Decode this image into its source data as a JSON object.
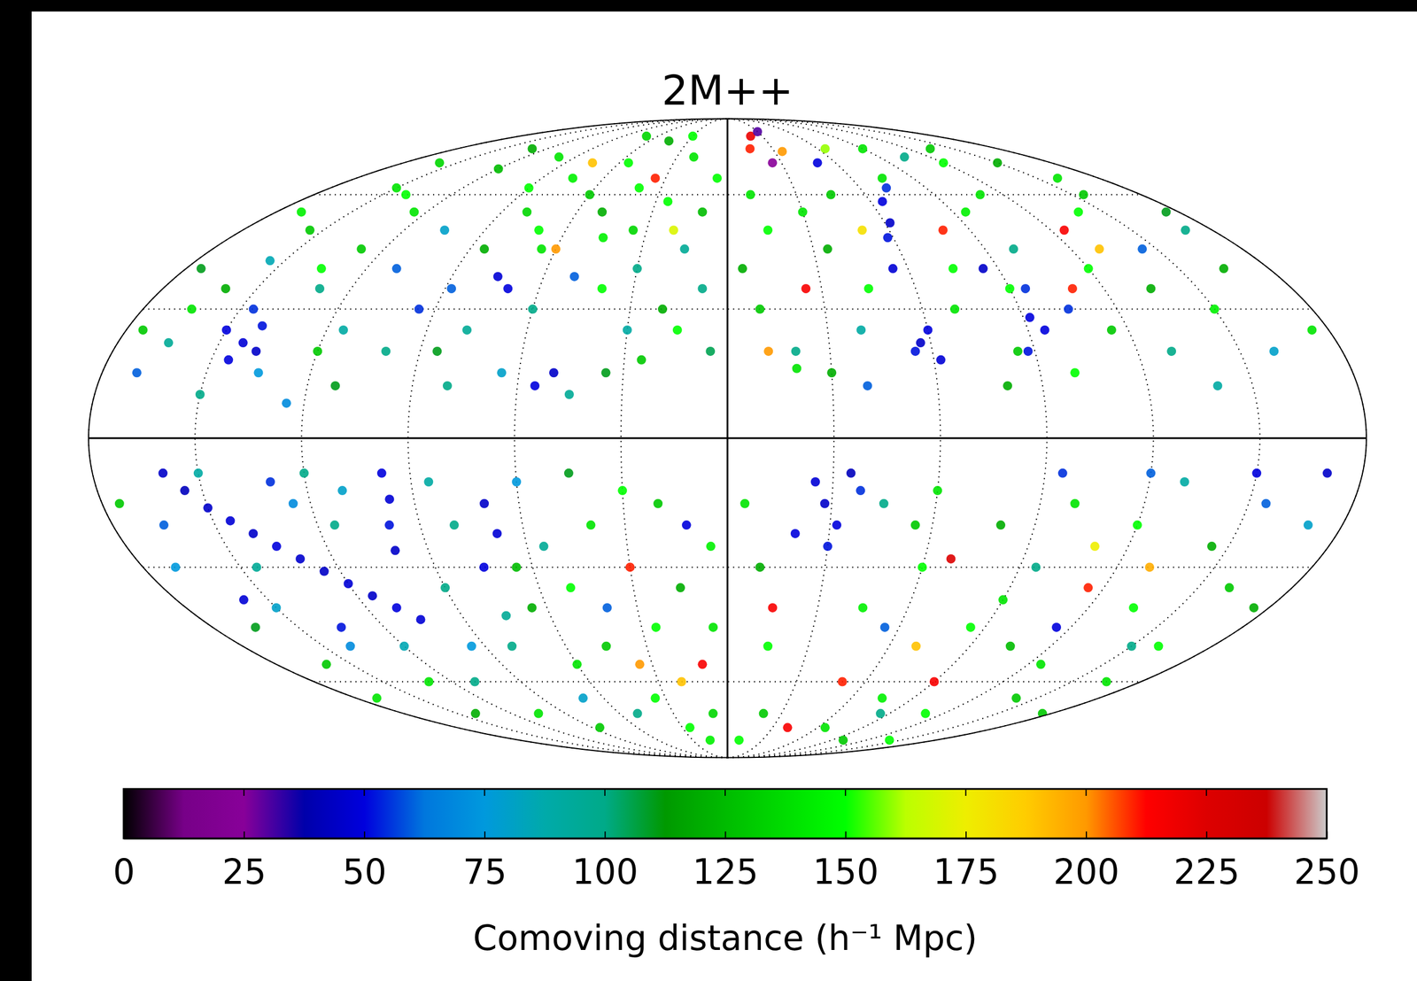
{
  "chart_data": {
    "type": "scatter",
    "title": "2M++",
    "x": [
      -170,
      -165,
      -160,
      -155,
      -150,
      -145,
      -143,
      -140,
      -138,
      -146,
      -150,
      -135,
      -130,
      -128,
      -125,
      -120,
      -160,
      -175,
      -170,
      -115,
      -110,
      -105,
      -100,
      -95,
      -120,
      -135,
      -155,
      -165,
      -140,
      -130,
      -100,
      -90,
      -112,
      -125,
      -150,
      -175,
      -85,
      -80,
      -75,
      -70,
      -65,
      -60,
      -55,
      -50,
      -45,
      -40,
      -35,
      -30,
      -25,
      -20,
      -15,
      -10,
      -5,
      -8,
      -20,
      -30,
      -40,
      -50,
      -60,
      -70,
      -75,
      -78,
      -85,
      -55,
      -50,
      -45,
      -35,
      -25,
      -65,
      -80,
      -70,
      -30,
      -45,
      -88,
      -15,
      -5,
      -60,
      -35,
      -75,
      -20,
      5,
      10,
      15,
      20,
      25,
      30,
      35,
      10,
      15,
      20,
      25,
      30,
      35,
      40,
      45,
      50,
      55,
      58,
      62,
      65,
      72,
      57,
      60,
      55,
      62,
      70,
      75,
      80,
      85,
      90,
      95,
      100,
      105,
      110,
      115,
      120,
      125,
      130,
      135,
      140,
      145,
      150,
      155,
      160,
      165,
      170,
      175,
      100,
      80,
      40,
      20,
      140,
      120,
      90,
      150,
      65,
      85,
      110,
      130,
      95,
      45,
      30,
      12,
      160,
      175,
      50,
      75,
      105,
      135,
      95,
      92,
      88,
      -160,
      -155,
      -150,
      -145,
      -140,
      -135,
      -130,
      -125,
      -120,
      -115,
      -110,
      -105,
      -98,
      -97,
      -99,
      -100,
      -170,
      -165,
      -160,
      -150,
      -140,
      -130,
      -120,
      -110,
      -175,
      -145,
      -125,
      -115,
      -170,
      -140,
      -150,
      -130,
      -120,
      -110,
      -165,
      -95,
      -105,
      -90,
      -158,
      -135,
      -85,
      -80,
      -75,
      -70,
      -68,
      -65,
      -60,
      -55,
      -50,
      -45,
      -40,
      -35,
      -30,
      -25,
      -20,
      -15,
      -10,
      -5,
      -8,
      -25,
      -50,
      -70,
      -80,
      -85,
      -60,
      -40,
      -30,
      -20,
      -12,
      -45,
      -65,
      -15,
      -35,
      -5,
      -75,
      5,
      10,
      15,
      20,
      25,
      28,
      32,
      35,
      30,
      38,
      20,
      45,
      50,
      55,
      60,
      65,
      70,
      80,
      85,
      90,
      95,
      100,
      105,
      110,
      115,
      120,
      125,
      130,
      135,
      140,
      145,
      150,
      155,
      160,
      165,
      170,
      175,
      95,
      120,
      150,
      170,
      60,
      10,
      40,
      75,
      100,
      140,
      115,
      55,
      85,
      130,
      45,
      15,
      160,
      175,
      90,
      68,
      110
    ],
    "y": [
      15,
      22,
      35,
      50,
      62,
      18,
      22,
      26,
      20,
      30,
      25,
      15,
      35,
      45,
      55,
      68,
      70,
      40,
      55,
      25,
      40,
      50,
      20,
      30,
      20,
      40,
      42,
      30,
      60,
      75,
      72,
      62,
      12,
      8,
      10,
      25,
      45,
      55,
      65,
      50,
      45,
      60,
      70,
      55,
      48,
      62,
      50,
      40,
      58,
      72,
      45,
      55,
      65,
      35,
      30,
      25,
      35,
      38,
      30,
      35,
      38,
      25,
      20,
      12,
      15,
      10,
      15,
      18,
      15,
      12,
      80,
      80,
      78,
      35,
      25,
      20,
      45,
      65,
      70,
      50,
      40,
      60,
      75,
      80,
      70,
      82,
      74,
      30,
      50,
      20,
      35,
      55,
      45,
      25,
      60,
      70,
      40,
      48,
      52,
      58,
      62,
      22,
      25,
      20,
      18,
      30,
      40,
      50,
      20,
      35,
      55,
      45,
      30,
      60,
      25,
      40,
      50,
      20,
      35,
      55,
      45,
      30,
      60,
      20,
      40,
      50,
      25,
      15,
      12,
      12,
      16,
      12,
      70,
      75,
      70,
      75,
      40,
      35,
      45,
      25,
      35,
      15,
      20,
      65,
      55,
      50,
      65,
      72,
      75,
      35,
      28,
      20,
      -8,
      -12,
      -16,
      -19,
      -22,
      -25,
      -28,
      -31,
      -34,
      -37,
      -40,
      -43,
      -8,
      -14,
      -20,
      -26,
      -30,
      -45,
      -55,
      -40,
      -50,
      -60,
      -50,
      -60,
      -15,
      -30,
      -15,
      -20,
      -65,
      -70,
      -8,
      -10,
      -8,
      -12,
      -20,
      -50,
      -70,
      -35,
      -38,
      -45,
      -10,
      -20,
      -30,
      -15,
      -22,
      -40,
      -55,
      -25,
      -35,
      -50,
      -20,
      -65,
      -30,
      -45,
      -15,
      -35,
      -55,
      -25,
      -70,
      -75,
      -70,
      -65,
      -50,
      -75,
      -10,
      -40,
      -12,
      -60,
      -20,
      -8,
      -30,
      -80,
      -55,
      -45,
      -42,
      -15,
      -30,
      -50,
      -70,
      -10,
      -15,
      -20,
      -8,
      -25,
      -12,
      -22,
      -40,
      -60,
      -20,
      -30,
      -75,
      -50,
      -20,
      -45,
      -60,
      -30,
      -15,
      -50,
      -70,
      -35,
      -20,
      -55,
      -10,
      -40,
      -65,
      -25,
      -50,
      -15,
      -35,
      -60,
      -20,
      -40,
      -8,
      -8,
      -8,
      -8,
      -12,
      -80,
      -75,
      -65,
      -80,
      -80,
      -45,
      -45,
      -70,
      -30,
      -15,
      -40,
      -50,
      -70,
      -38,
      -28,
      -25
    ],
    "distance": [
      60,
      95,
      120,
      130,
      140,
      50,
      48,
      52,
      45,
      55,
      50,
      75,
      100,
      130,
      140,
      125,
      135,
      110,
      145,
      90,
      60,
      80,
      100,
      55,
      130,
      150,
      85,
      140,
      150,
      120,
      140,
      150,
      110,
      70,
      100,
      130,
      120,
      135,
      145,
      150,
      140,
      130,
      150,
      120,
      145,
      150,
      135,
      100,
      150,
      140,
      95,
      125,
      150,
      100,
      120,
      90,
      150,
      60,
      100,
      50,
      48,
      95,
      110,
      50,
      45,
      95,
      110,
      130,
      80,
      100,
      135,
      150,
      120,
      60,
      150,
      105,
      200,
      210,
      190,
      170,
      120,
      140,
      210,
      220,
      25,
      30,
      200,
      130,
      150,
      100,
      215,
      140,
      120,
      90,
      130,
      50,
      48,
      52,
      45,
      50,
      55,
      45,
      50,
      52,
      48,
      140,
      150,
      210,
      130,
      150,
      145,
      100,
      55,
      140,
      130,
      150,
      215,
      100,
      120,
      150,
      60,
      145,
      130,
      80,
      120,
      100,
      140,
      150,
      120,
      60,
      140,
      90,
      150,
      140,
      120,
      160,
      45,
      210,
      190,
      50,
      150,
      120,
      200,
      140,
      110,
      180,
      140,
      100,
      130,
      55,
      50,
      52,
      45,
      42,
      45,
      48,
      45,
      50,
      46,
      44,
      48,
      45,
      50,
      48,
      50,
      48,
      52,
      45,
      75,
      110,
      130,
      80,
      70,
      140,
      85,
      100,
      130,
      95,
      70,
      100,
      140,
      120,
      90,
      55,
      100,
      80,
      60,
      75,
      140,
      100,
      48,
      52,
      90,
      100,
      50,
      45,
      48,
      120,
      140,
      95,
      150,
      130,
      140,
      150,
      210,
      150,
      130,
      120,
      215,
      145,
      135,
      150,
      100,
      80,
      100,
      130,
      75,
      60,
      150,
      190,
      50,
      110,
      125,
      145,
      200,
      140,
      95,
      140,
      120,
      150,
      130,
      48,
      45,
      50,
      42,
      52,
      55,
      50,
      145,
      210,
      130,
      150,
      140,
      190,
      120,
      150,
      215,
      100,
      140,
      125,
      150,
      210,
      150,
      140,
      90,
      150,
      130,
      120,
      100,
      60,
      130,
      140,
      80,
      120,
      55,
      60,
      50,
      45,
      140,
      150,
      215,
      145,
      130,
      150,
      50,
      60,
      100,
      195,
      100,
      215,
      150,
      130,
      140,
      225,
      175
    ],
    "xlim": [
      -180,
      180
    ],
    "ylim": [
      -90,
      90
    ],
    "xticks": [
      -180,
      -150,
      -120,
      -90,
      -60,
      -30,
      0,
      30,
      60,
      90,
      120,
      150,
      180
    ],
    "yticks": [
      -90,
      -60,
      -30,
      0,
      30,
      60,
      90
    ],
    "grid": true,
    "tick_labels": false,
    "colorbar": {
      "label": "Comoving distance (h⁻¹ Mpc)",
      "range": [
        0,
        250
      ],
      "ticks": [
        0,
        25,
        50,
        75,
        100,
        125,
        150,
        175,
        200,
        225,
        250
      ]
    }
  }
}
